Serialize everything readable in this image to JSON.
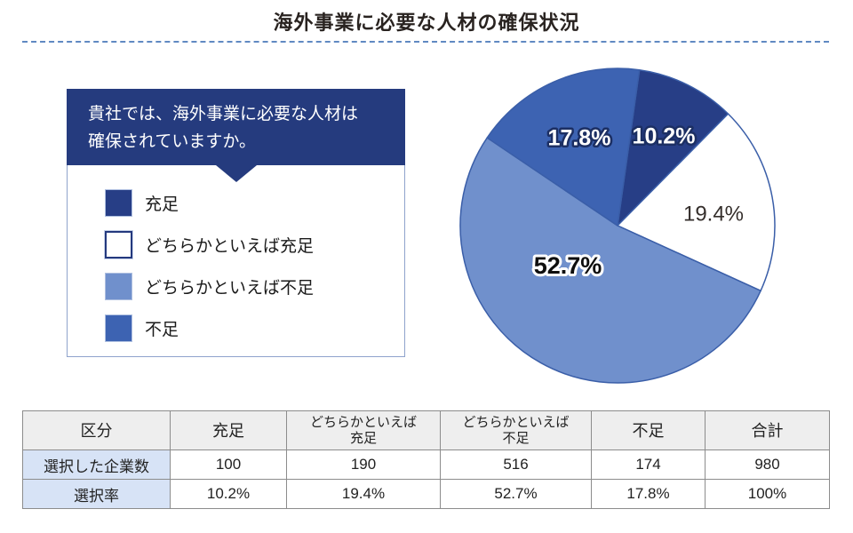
{
  "title": "海外事業に必要な人材の確保状況",
  "question_panel": {
    "question": "貴社では、海外事業に必要な人材は確保されていますか。",
    "question_lines": [
      "貴社では、海外事業に必要な人材は",
      "確保されていますか。"
    ],
    "legend": [
      {
        "label": "充足",
        "swatch": "navy",
        "color": "#273e86"
      },
      {
        "label": "どちらかといえば充足",
        "swatch": "white",
        "color": "#ffffff"
      },
      {
        "label": "どちらかといえば不足",
        "swatch": "light",
        "color": "#7090cc"
      },
      {
        "label": "不足",
        "swatch": "medium",
        "color": "#3d63b2"
      }
    ]
  },
  "chart_data": {
    "type": "pie",
    "title": "海外事業に必要な人材の確保状況",
    "categories": [
      "充足",
      "どちらかといえば充足",
      "どちらかといえば不足",
      "不足"
    ],
    "values": [
      10.2,
      19.4,
      52.7,
      17.8
    ],
    "labels": [
      "10.2%",
      "19.4%",
      "52.7%",
      "17.8%"
    ],
    "colors": [
      "#273e86",
      "#ffffff",
      "#7090cc",
      "#3d63b2"
    ],
    "label_styles": [
      "outline-dark",
      "plain",
      "outline-white",
      "outline-dark"
    ],
    "stroke_color": "#3a5ea8",
    "start_angle_deg": 8,
    "clockwise": true,
    "legend_position": "left-panel"
  },
  "table": {
    "headers": [
      [
        "区分"
      ],
      [
        "充足"
      ],
      [
        "どちらかといえば",
        "充足"
      ],
      [
        "どちらかといえば",
        "不足"
      ],
      [
        "不足"
      ],
      [
        "合計"
      ]
    ],
    "rows": [
      {
        "label": "選択した企業数",
        "values": [
          "100",
          "190",
          "516",
          "174",
          "980"
        ]
      },
      {
        "label": "選択率",
        "values": [
          "10.2%",
          "19.4%",
          "52.7%",
          "17.8%",
          "100%"
        ]
      }
    ]
  }
}
